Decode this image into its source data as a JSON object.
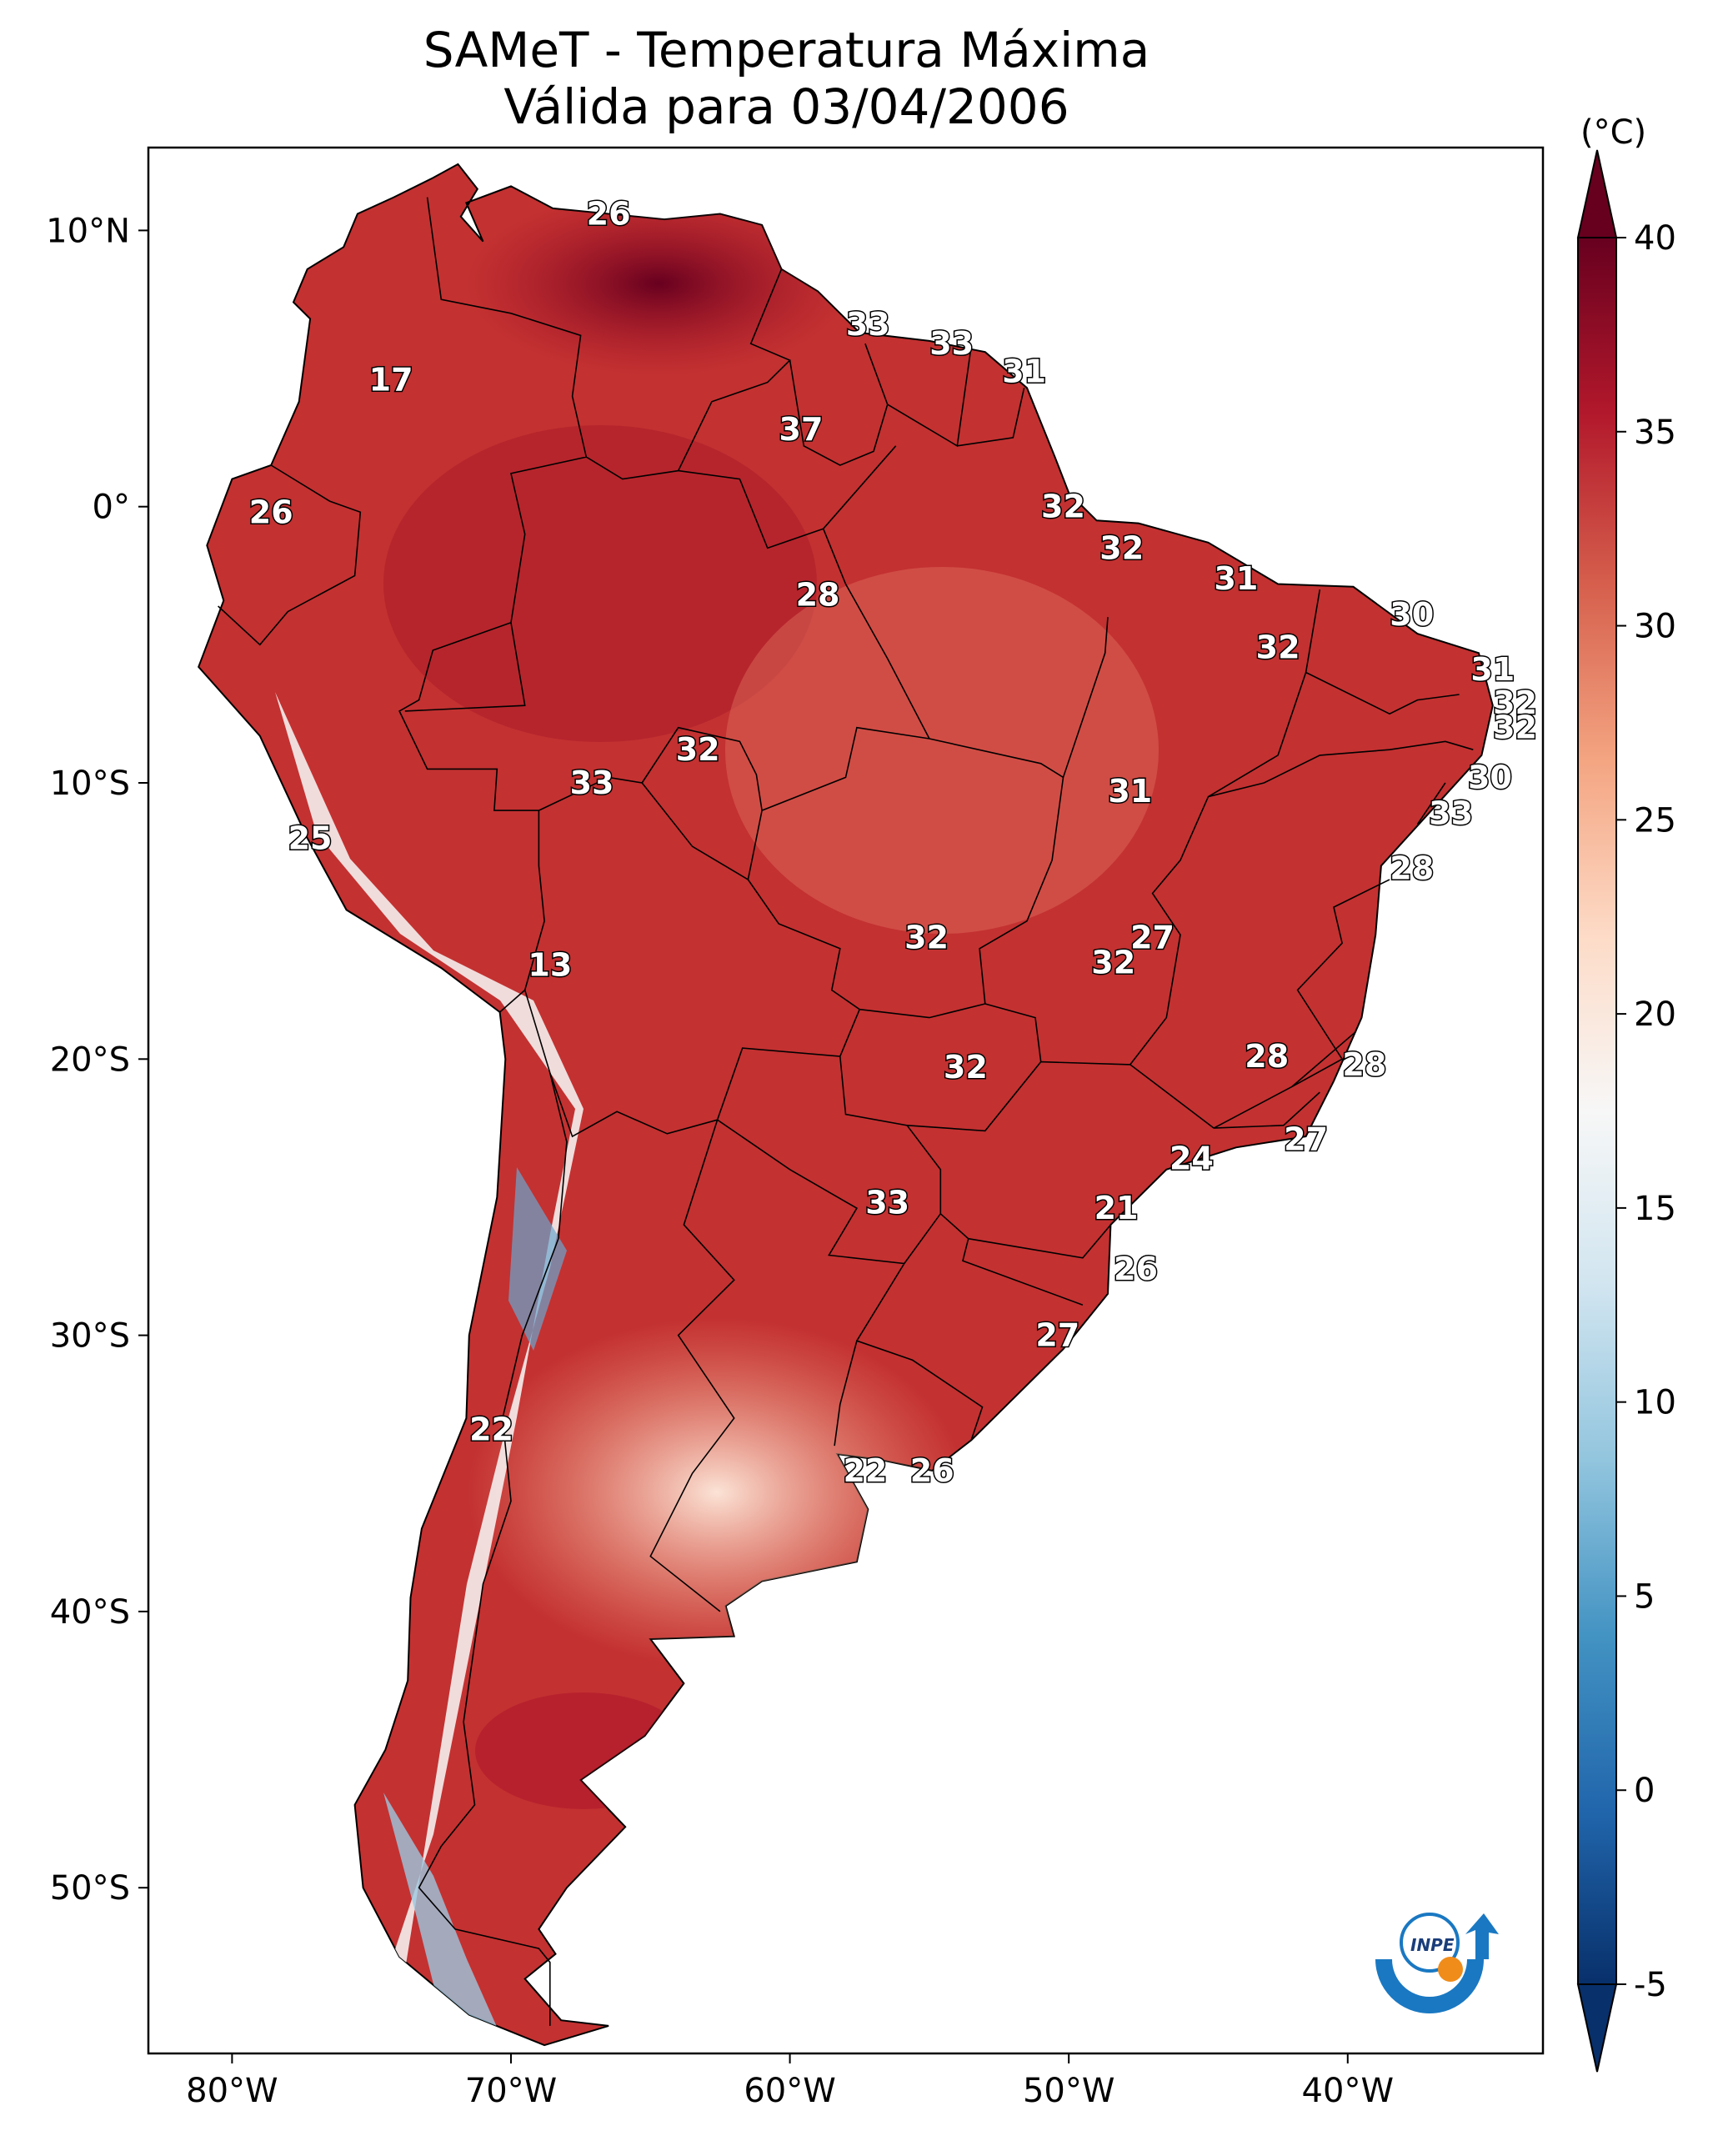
{
  "title": {
    "line1": "SAMeT - Temperatura Máxima",
    "line2": "Válida para 03/04/2006"
  },
  "map": {
    "lon_ticks": [
      "80°W",
      "70°W",
      "60°W",
      "50°W",
      "40°W"
    ],
    "lat_ticks": [
      "10°N",
      "0°",
      "10°S",
      "20°S",
      "30°S",
      "40°S",
      "50°S"
    ],
    "lon_range": [
      -83,
      -33
    ],
    "lat_range": [
      13,
      -56
    ]
  },
  "colorbar": {
    "unit": "(°C)",
    "ticks": [
      "40",
      "35",
      "30",
      "25",
      "20",
      "15",
      "10",
      "5",
      "0",
      "-5"
    ],
    "range": [
      -5,
      40
    ],
    "colors": [
      "#08306b",
      "#2166ac",
      "#4393c3",
      "#92c5de",
      "#d1e5f0",
      "#f7f7f7",
      "#fddbc7",
      "#f4a582",
      "#d6604d",
      "#b2182b",
      "#67001f"
    ]
  },
  "labels": [
    {
      "text": "26",
      "lon": -66.5,
      "lat": 10.6
    },
    {
      "text": "33",
      "lon": -57.2,
      "lat": 6.6
    },
    {
      "text": "33",
      "lon": -54.2,
      "lat": 5.9
    },
    {
      "text": "31",
      "lon": -51.6,
      "lat": 4.9
    },
    {
      "text": "17",
      "lon": -74.3,
      "lat": 4.6
    },
    {
      "text": "37",
      "lon": -59.6,
      "lat": 2.8
    },
    {
      "text": "26",
      "lon": -78.6,
      "lat": -0.2
    },
    {
      "text": "32",
      "lon": -50.2,
      "lat": 0.0
    },
    {
      "text": "32",
      "lon": -48.1,
      "lat": -1.5
    },
    {
      "text": "31",
      "lon": -44.0,
      "lat": -2.6
    },
    {
      "text": "28",
      "lon": -59.0,
      "lat": -3.2
    },
    {
      "text": "30",
      "lon": -37.7,
      "lat": -3.9
    },
    {
      "text": "32",
      "lon": -42.5,
      "lat": -5.1
    },
    {
      "text": "31",
      "lon": -34.8,
      "lat": -5.9
    },
    {
      "text": "32",
      "lon": -34.0,
      "lat": -7.1
    },
    {
      "text": "32",
      "lon": -34.0,
      "lat": -8.0
    },
    {
      "text": "32",
      "lon": -63.3,
      "lat": -8.8
    },
    {
      "text": "33",
      "lon": -67.1,
      "lat": -10.0
    },
    {
      "text": "30",
      "lon": -34.9,
      "lat": -9.8
    },
    {
      "text": "31",
      "lon": -47.8,
      "lat": -10.3
    },
    {
      "text": "33",
      "lon": -36.3,
      "lat": -11.1
    },
    {
      "text": "25",
      "lon": -77.2,
      "lat": -12.0
    },
    {
      "text": "28",
      "lon": -37.7,
      "lat": -13.1
    },
    {
      "text": "32",
      "lon": -55.1,
      "lat": -15.6
    },
    {
      "text": "27",
      "lon": -47.0,
      "lat": -15.6
    },
    {
      "text": "32",
      "lon": -48.4,
      "lat": -16.5
    },
    {
      "text": "13",
      "lon": -68.6,
      "lat": -16.6
    },
    {
      "text": "28",
      "lon": -42.9,
      "lat": -19.9
    },
    {
      "text": "28",
      "lon": -39.4,
      "lat": -20.2
    },
    {
      "text": "32",
      "lon": -53.7,
      "lat": -20.3
    },
    {
      "text": "27",
      "lon": -41.5,
      "lat": -22.9
    },
    {
      "text": "24",
      "lon": -45.6,
      "lat": -23.6
    },
    {
      "text": "33",
      "lon": -56.5,
      "lat": -25.2
    },
    {
      "text": "21",
      "lon": -48.3,
      "lat": -25.4
    },
    {
      "text": "26",
      "lon": -47.6,
      "lat": -27.6
    },
    {
      "text": "27",
      "lon": -50.4,
      "lat": -30.0
    },
    {
      "text": "22",
      "lon": -70.7,
      "lat": -33.4
    },
    {
      "text": "22",
      "lon": -57.3,
      "lat": -34.9
    },
    {
      "text": "26",
      "lon": -54.9,
      "lat": -34.9
    }
  ],
  "logo": {
    "text": "INPE"
  }
}
